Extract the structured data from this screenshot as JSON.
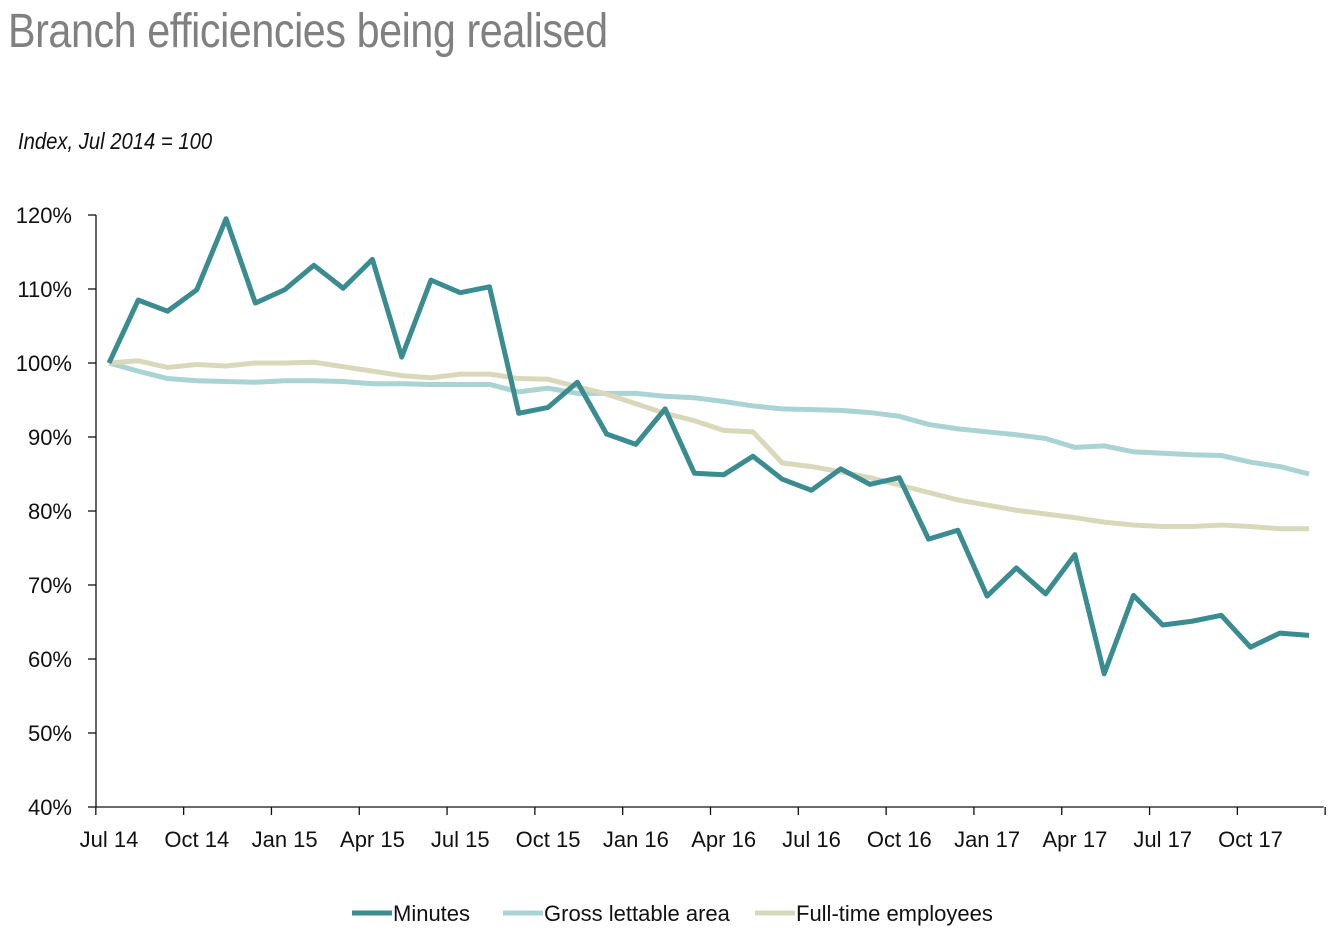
{
  "chart_data": {
    "type": "line",
    "title": "Branch efficiencies being realised",
    "ylabel": "Index, Jul 2014 = 100",
    "xlabel": "",
    "ylim": [
      40,
      120
    ],
    "yticks": [
      "40%",
      "50%",
      "60%",
      "70%",
      "80%",
      "90%",
      "100%",
      "110%",
      "120%"
    ],
    "ytick_values": [
      40,
      50,
      60,
      70,
      80,
      90,
      100,
      110,
      120
    ],
    "xtick_labels": [
      "Jul 14",
      "Oct 14",
      "Jan 15",
      "Apr 15",
      "Jul 15",
      "Oct 15",
      "Jan 16",
      "Apr 16",
      "Jul 16",
      "Oct 16",
      "Jan 17",
      "Apr 17",
      "Jul 17",
      "Oct 17"
    ],
    "x_range": [
      "Jul 2014",
      "Dec 2017"
    ],
    "frequency": "monthly",
    "grid": false,
    "legend_position": "bottom",
    "series": [
      {
        "name": "Minutes",
        "color": "#3b8c90",
        "values": [
          100,
          108.5,
          107,
          109.9,
          119.5,
          108.1,
          109.9,
          113.2,
          110.1,
          114,
          100.8,
          111.2,
          109.5,
          110.3,
          93.2,
          94,
          97.4,
          90.4,
          89,
          93.8,
          85.1,
          84.9,
          87.4,
          84.3,
          82.8,
          85.7,
          83.6,
          84.5,
          76.2,
          77.4,
          68.5,
          72.3,
          68.8,
          74.1,
          58,
          68.6,
          64.6,
          65.1,
          65.9,
          61.6,
          63.5,
          63.2
        ]
      },
      {
        "name": "Gross lettable area",
        "color": "#aad3d3",
        "values": [
          100,
          98.9,
          97.9,
          97.6,
          97.5,
          97.4,
          97.6,
          97.6,
          97.5,
          97.2,
          97.2,
          97.1,
          97.1,
          97.1,
          96.1,
          96.6,
          95.9,
          95.9,
          95.9,
          95.5,
          95.3,
          94.8,
          94.2,
          93.8,
          93.7,
          93.6,
          93.3,
          92.8,
          91.7,
          91.1,
          90.7,
          90.3,
          89.8,
          88.6,
          88.8,
          88,
          87.8,
          87.6,
          87.5,
          86.6,
          86,
          85
        ]
      },
      {
        "name": "Full-time employees",
        "color": "#dad8ba",
        "values": [
          100,
          100.3,
          99.4,
          99.8,
          99.6,
          100,
          100,
          100.1,
          99.5,
          98.9,
          98.3,
          98,
          98.5,
          98.5,
          97.9,
          97.8,
          96.8,
          95.8,
          94.5,
          93.2,
          92.2,
          90.9,
          90.7,
          86.5,
          86,
          85.3,
          84.5,
          83.5,
          82.5,
          81.5,
          80.8,
          80.1,
          79.6,
          79.1,
          78.5,
          78.1,
          77.9,
          77.9,
          78.1,
          77.9,
          77.6,
          77.6
        ]
      }
    ]
  }
}
